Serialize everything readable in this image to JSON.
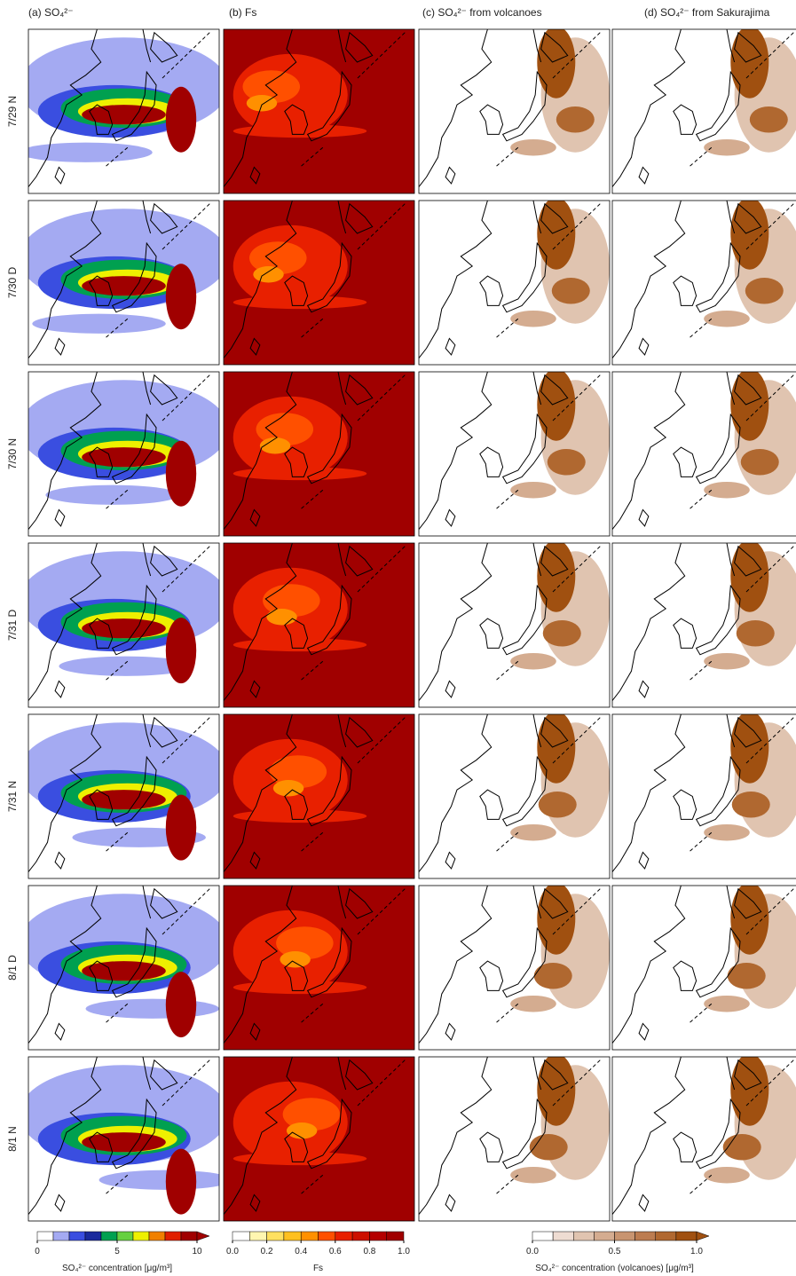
{
  "columns": [
    "(a) SO₄²⁻",
    "(b) Fs",
    "(c) SO₄²⁻ from volcanoes",
    "(d) SO₄²⁻ from Sakurajima"
  ],
  "rows": [
    "7/29 N",
    "7/30 D",
    "7/30 N",
    "7/31 D",
    "7/31 N",
    "8/1 D",
    "8/1 N"
  ],
  "colorbars": [
    {
      "label": "SO₄²⁻ concentration [μg/m³]",
      "lim": [
        0,
        10
      ],
      "ticks": [
        0,
        5,
        10
      ],
      "colors": [
        "#ffffff",
        "#a4aaf2",
        "#3a4ee0",
        "#1a2a9c",
        "#00a050",
        "#66d040",
        "#eef000",
        "#f08000",
        "#e02000",
        "#a00000"
      ]
    },
    {
      "label": "Fs",
      "lim": [
        0,
        1
      ],
      "ticks": [
        {
          "value": 0,
          "label": "0.0"
        },
        {
          "value": 0.2,
          "label": "0.2"
        },
        {
          "value": 0.4,
          "label": "0.4"
        },
        {
          "value": 0.6,
          "label": "0.6"
        },
        {
          "value": 0.8,
          "label": "0.8"
        },
        {
          "value": 1,
          "label": "1.0"
        }
      ],
      "colors": [
        "#ffffff",
        "#fff6b0",
        "#ffe060",
        "#ffc020",
        "#ff9000",
        "#ff5000",
        "#e82000",
        "#cc1000",
        "#b40000",
        "#a00000"
      ]
    },
    {
      "label": "SO₄²⁻ concentration (volcanoes) [μg/m³]",
      "lim": [
        0,
        1
      ],
      "ticks": [
        {
          "value": 0,
          "label": "0.0"
        },
        {
          "value": 0.5,
          "label": "0.5"
        },
        {
          "value": 1,
          "label": "1.0"
        }
      ],
      "colors": [
        "#ffffff",
        "#eedcd2",
        "#e0c4b0",
        "#d4ac90",
        "#c89470",
        "#bc7c50",
        "#b06830",
        "#a05010"
      ]
    }
  ]
}
